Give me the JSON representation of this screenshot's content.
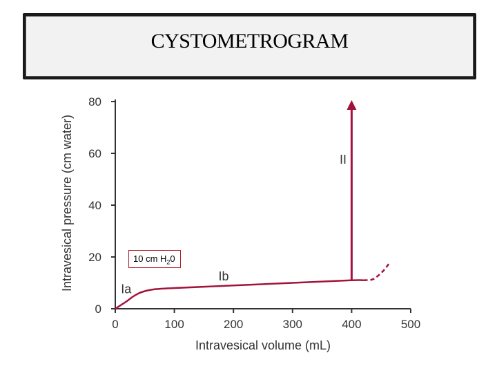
{
  "slide_title": "CYSTOMETROGRAM",
  "annotation": {
    "prefix": "10 cm H",
    "sub": "2",
    "suffix": "0"
  },
  "chart_data": {
    "type": "line",
    "title": "",
    "xlabel": "Intravesical volume (mL)",
    "ylabel": "Intravesical pressure (cm water)",
    "xlim": [
      0,
      500
    ],
    "ylim": [
      0,
      80
    ],
    "xticks": [
      0,
      100,
      200,
      300,
      400,
      500
    ],
    "yticks": [
      0,
      20,
      40,
      60,
      80
    ],
    "grid": false,
    "color": "#a3123a",
    "series": [
      {
        "x": [
          0,
          10,
          20,
          30,
          40,
          50,
          60,
          70,
          100,
          200,
          300,
          400,
          420
        ],
        "y": [
          0,
          1.5,
          3.0,
          4.7,
          6.0,
          6.8,
          7.3,
          7.6,
          8.0,
          9.0,
          10.0,
          11.0,
          11.0
        ]
      },
      {
        "style": "dashed",
        "x": [
          420,
          435,
          445,
          455,
          465
        ],
        "y": [
          11.0,
          11.3,
          12.8,
          15.0,
          18.0
        ]
      },
      {
        "style": "arrow",
        "x": [
          400,
          400
        ],
        "y": [
          11.0,
          80
        ]
      }
    ],
    "annotations": [
      {
        "text": "Ia",
        "x": 5,
        "y": 6
      },
      {
        "text": "Ib",
        "x": 170,
        "y": 11
      },
      {
        "text": "II",
        "x": 375,
        "y": 56
      }
    ]
  }
}
